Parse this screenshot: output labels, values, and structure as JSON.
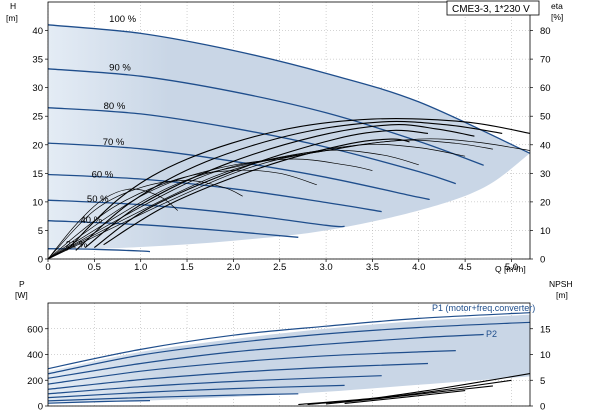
{
  "title": "CME3-3, 1*230 V",
  "colors": {
    "curve": "#1f4e8c",
    "envelope_fill": "#c9d6e6",
    "envelope_light": "#e4ecf5",
    "grid": "#a8a8a8",
    "eta": "#000000"
  },
  "chart_data": [
    {
      "type": "line",
      "name": "head",
      "ylabel": "H",
      "yunit": "[m]",
      "y2label": "eta",
      "y2unit": "[%]",
      "xlabel": "Q [m³/h]",
      "xlim": [
        0,
        5.2
      ],
      "ylim": [
        0,
        45
      ],
      "y2lim": [
        0,
        90
      ],
      "xticks": [
        0,
        0.5,
        1,
        1.5,
        2,
        2.5,
        3,
        3.5,
        4,
        4.5,
        5
      ],
      "xtick_labels": [
        "0",
        "0.5",
        "1.0",
        "1.5",
        "2.0",
        "2.5",
        "3.0",
        "3.5",
        "4.0",
        "4.5",
        "5.0"
      ],
      "yticks": [
        0,
        5,
        10,
        15,
        20,
        25,
        30,
        35,
        40
      ],
      "y2ticks": [
        0,
        10,
        20,
        30,
        40,
        50,
        60,
        70,
        80
      ],
      "grid": true,
      "envelope": {
        "upper": [
          [
            0,
            41
          ],
          [
            1,
            39.5
          ],
          [
            2,
            36.5
          ],
          [
            3,
            32.5
          ],
          [
            4,
            27.5
          ],
          [
            5.2,
            18.5
          ]
        ],
        "lower": [
          [
            0,
            1.5
          ],
          [
            1,
            2.1
          ],
          [
            2,
            3.2
          ],
          [
            3,
            5.0
          ],
          [
            4,
            8.5
          ],
          [
            4.7,
            12.5
          ],
          [
            5.2,
            18.5
          ]
        ]
      },
      "series": [
        {
          "label": "100 %",
          "points": [
            [
              0,
              41
            ],
            [
              1,
              39.5
            ],
            [
              2,
              36.5
            ],
            [
              3,
              32.5
            ],
            [
              4,
              27.5
            ],
            [
              5.2,
              18.5
            ]
          ]
        },
        {
          "label": "90 %",
          "points": [
            [
              0,
              33.3
            ],
            [
              1,
              32
            ],
            [
              2,
              29.3
            ],
            [
              3,
              25.6
            ],
            [
              4,
              20.6
            ],
            [
              4.7,
              16.4
            ]
          ]
        },
        {
          "label": "80 %",
          "points": [
            [
              0,
              26.5
            ],
            [
              1,
              25.4
            ],
            [
              2,
              22.9
            ],
            [
              3,
              19.6
            ],
            [
              4,
              15.3
            ],
            [
              4.4,
              13.2
            ]
          ]
        },
        {
          "label": "70 %",
          "points": [
            [
              0,
              20.3
            ],
            [
              1,
              19.3
            ],
            [
              2,
              17.1
            ],
            [
              3,
              14.3
            ],
            [
              4,
              10.8
            ],
            [
              4.1,
              10.5
            ]
          ]
        },
        {
          "label": "60 %",
          "points": [
            [
              0,
              14.8
            ],
            [
              1,
              14.0
            ],
            [
              2,
              12.3
            ],
            [
              3,
              9.9
            ],
            [
              3.6,
              8.3
            ]
          ]
        },
        {
          "label": "50 %",
          "points": [
            [
              0,
              10.3
            ],
            [
              1,
              9.5
            ],
            [
              2,
              8.0
            ],
            [
              3,
              5.9
            ],
            [
              3.2,
              5.7
            ]
          ]
        },
        {
          "label": "40 %",
          "points": [
            [
              0,
              6.7
            ],
            [
              1,
              6.0
            ],
            [
              2,
              4.8
            ],
            [
              2.7,
              3.8
            ]
          ]
        },
        {
          "label": "21 %",
          "points": [
            [
              0,
              1.8
            ],
            [
              0.5,
              1.7
            ],
            [
              1,
              1.4
            ],
            [
              1.1,
              1.3
            ]
          ]
        }
      ],
      "eta_series": [
        {
          "points": [
            [
              0,
              0
            ],
            [
              0.3,
              12
            ],
            [
              0.6,
              21
            ],
            [
              0.9,
              24.5
            ],
            [
              1.2,
              22
            ],
            [
              1.4,
              17
            ]
          ]
        },
        {
          "points": [
            [
              0,
              0
            ],
            [
              0.5,
              17
            ],
            [
              1.0,
              25
            ],
            [
              1.5,
              27.5
            ],
            [
              1.9,
              25
            ],
            [
              2.1,
              22
            ]
          ]
        },
        {
          "points": [
            [
              0,
              0
            ],
            [
              0.7,
              18
            ],
            [
              1.4,
              28
            ],
            [
              2.0,
              31
            ],
            [
              2.5,
              30
            ],
            [
              2.9,
              26
            ]
          ]
        },
        {
          "points": [
            [
              0,
              0
            ],
            [
              1.0,
              22
            ],
            [
              1.8,
              31.5
            ],
            [
              2.6,
              35
            ],
            [
              3.2,
              33
            ],
            [
              3.5,
              31
            ]
          ]
        },
        {
          "points": [
            [
              0,
              0
            ],
            [
              1.3,
              25
            ],
            [
              2.2,
              33.5
            ],
            [
              3.0,
              38
            ],
            [
              3.6,
              36.5
            ],
            [
              4.0,
              33
            ]
          ]
        },
        {
          "points": [
            [
              0,
              0
            ],
            [
              1.6,
              28
            ],
            [
              2.6,
              36
            ],
            [
              3.4,
              40
            ],
            [
              4.0,
              39
            ],
            [
              4.5,
              36
            ]
          ]
        },
        {
          "points": [
            [
              0,
              0
            ],
            [
              1.8,
              29
            ],
            [
              3.0,
              38
            ],
            [
              3.8,
              41.5
            ],
            [
              4.4,
              40.5
            ],
            [
              4.8,
              38.5
            ]
          ]
        },
        {
          "points": [
            [
              0,
              0
            ],
            [
              2.0,
              30
            ],
            [
              3.2,
              39
            ],
            [
              4.0,
              42
            ],
            [
              4.6,
              41
            ],
            [
              5.2,
              38
            ]
          ]
        }
      ],
      "eta_dense": [
        {
          "points": [
            [
              0.2,
              3
            ],
            [
              0.8,
              22
            ],
            [
              1.5,
              35
            ],
            [
              2.5,
              45
            ],
            [
              3.5,
              49
            ],
            [
              4.5,
              48
            ],
            [
              5.2,
              44
            ]
          ]
        },
        {
          "points": [
            [
              0.3,
              3
            ],
            [
              0.9,
              20
            ],
            [
              1.7,
              34
            ],
            [
              2.7,
              44
            ],
            [
              3.6,
              48
            ],
            [
              4.3,
              47
            ],
            [
              4.9,
              44
            ]
          ]
        },
        {
          "points": [
            [
              0.4,
              4
            ],
            [
              1.0,
              19
            ],
            [
              1.9,
              33
            ],
            [
              2.9,
              43
            ],
            [
              3.7,
              47
            ],
            [
              4.2,
              45.5
            ],
            [
              4.6,
              43
            ]
          ]
        },
        {
          "points": [
            [
              0.5,
              4
            ],
            [
              1.1,
              18
            ],
            [
              2.1,
              32
            ],
            [
              3.1,
              42
            ],
            [
              3.7,
              45
            ],
            [
              4.1,
              44
            ]
          ]
        },
        {
          "points": [
            [
              0.6,
              5
            ],
            [
              1.3,
              19
            ],
            [
              2.3,
              32
            ],
            [
              3.2,
              40
            ],
            [
              3.7,
              42
            ],
            [
              3.9,
              41
            ]
          ]
        }
      ],
      "annotations": [
        "100 %",
        "90 %",
        "80 %",
        "70 %",
        "60 %",
        "50 %",
        "40 %",
        "21 %"
      ]
    },
    {
      "type": "line",
      "name": "power",
      "ylabel": "P",
      "yunit": "[W]",
      "y2label": "NPSH",
      "y2unit": "[m]",
      "xlim": [
        0,
        5.2
      ],
      "ylim": [
        0,
        800
      ],
      "y2lim": [
        0,
        20
      ],
      "yticks": [
        0,
        200,
        400,
        600
      ],
      "y2ticks": [
        0,
        5,
        10,
        15
      ],
      "grid": true,
      "envelope": {
        "upper": [
          [
            0,
            270
          ],
          [
            1,
            420
          ],
          [
            2,
            520
          ],
          [
            3,
            600
          ],
          [
            4,
            660
          ],
          [
            5.2,
            710
          ]
        ],
        "lower": [
          [
            0,
            15
          ],
          [
            1,
            40
          ],
          [
            2,
            70
          ],
          [
            3,
            110
          ],
          [
            4,
            165
          ],
          [
            5.2,
            230
          ]
        ]
      },
      "series": [
        {
          "label": "P1 (motor+freq.converter)",
          "points": [
            [
              0,
              290
            ],
            [
              1,
              440
            ],
            [
              2,
              550
            ],
            [
              3,
              620
            ],
            [
              4,
              680
            ],
            [
              5.2,
              725
            ]
          ]
        },
        {
          "label": "P2",
          "points": [
            [
              0,
              250
            ],
            [
              1,
              395
            ],
            [
              2,
              490
            ],
            [
              3,
              560
            ],
            [
              4,
              610
            ],
            [
              5.2,
              650
            ]
          ]
        },
        {
          "points": [
            [
              0,
              215
            ],
            [
              1,
              330
            ],
            [
              2,
              420
            ],
            [
              3,
              480
            ],
            [
              4,
              530
            ],
            [
              4.7,
              555
            ]
          ]
        },
        {
          "points": [
            [
              0,
              170
            ],
            [
              1,
              270
            ],
            [
              2,
              340
            ],
            [
              3,
              390
            ],
            [
              4,
              420
            ],
            [
              4.4,
              430
            ]
          ]
        },
        {
          "points": [
            [
              0,
              130
            ],
            [
              1,
              205
            ],
            [
              2,
              260
            ],
            [
              3,
              300
            ],
            [
              4.1,
              330
            ]
          ]
        },
        {
          "points": [
            [
              0,
              95
            ],
            [
              1,
              150
            ],
            [
              2,
              190
            ],
            [
              3,
              220
            ],
            [
              3.6,
              235
            ]
          ]
        },
        {
          "points": [
            [
              0,
              65
            ],
            [
              1,
              105
            ],
            [
              2,
              135
            ],
            [
              3.2,
              160
            ]
          ]
        },
        {
          "points": [
            [
              0,
              40
            ],
            [
              1,
              65
            ],
            [
              2,
              85
            ],
            [
              2.7,
              95
            ]
          ]
        },
        {
          "points": [
            [
              0,
              22
            ],
            [
              0.6,
              35
            ],
            [
              1.1,
              42
            ]
          ]
        }
      ],
      "npsh_series": [
        {
          "points": [
            [
              2.7,
              0.3
            ],
            [
              3.5,
              1.5
            ],
            [
              4.2,
              3.3
            ],
            [
              5.2,
              6.3
            ]
          ]
        },
        {
          "points": [
            [
              2.8,
              0.3
            ],
            [
              3.6,
              1.6
            ],
            [
              4.3,
              3.2
            ],
            [
              5.0,
              5.0
            ]
          ]
        },
        {
          "points": [
            [
              3.0,
              0.4
            ],
            [
              3.7,
              1.7
            ],
            [
              4.4,
              3.1
            ],
            [
              4.8,
              3.9
            ]
          ]
        },
        {
          "points": [
            [
              3.2,
              0.5
            ],
            [
              3.9,
              1.8
            ],
            [
              4.5,
              3.0
            ]
          ]
        }
      ],
      "series_labels": [
        "P1 (motor+freq.converter)",
        "P2"
      ]
    }
  ]
}
